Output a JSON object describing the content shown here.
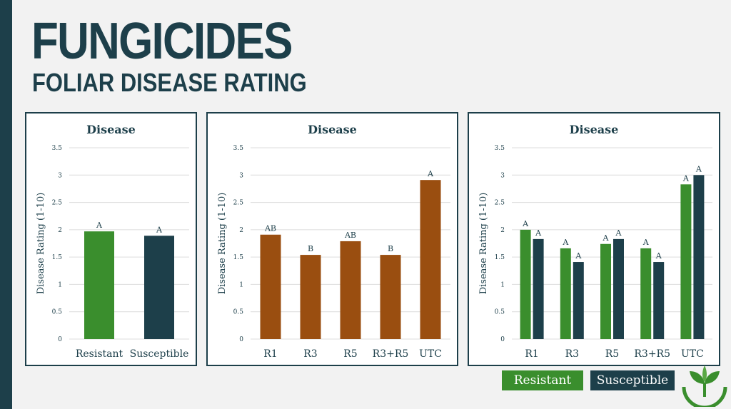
{
  "header": {
    "title": "FUNGICIDES",
    "subtitle": "FOLIAR DISEASE RATING"
  },
  "legend": {
    "items": [
      {
        "label": "Resistant",
        "color": "#3a8e2d"
      },
      {
        "label": "Susceptible",
        "color": "#1d3f4a"
      }
    ]
  },
  "colors": {
    "resistant": "#3a8e2d",
    "susceptible": "#1d3f4a",
    "timing": "#9a4e10",
    "frame": "#1d3f4a"
  },
  "chart_data": [
    {
      "type": "bar",
      "title": "Disease",
      "ylabel": "Disease Rating (1-10)",
      "ylim": [
        0,
        3.5
      ],
      "yticks": [
        "0",
        "0.5",
        "1",
        "1.5",
        "2",
        "2.5",
        "3",
        "3.5"
      ],
      "categories": [
        "Resistant",
        "Susceptible"
      ],
      "series": [
        {
          "values": [
            1.97,
            1.89
          ],
          "letters": [
            "A",
            "A"
          ],
          "colors": [
            "#3a8e2d",
            "#1d3f4a"
          ]
        }
      ],
      "grid": true
    },
    {
      "type": "bar",
      "title": "Disease",
      "ylabel": "Disease Rating (1-10)",
      "ylim": [
        0,
        3.5
      ],
      "yticks": [
        "0",
        "0.5",
        "1",
        "1.5",
        "2",
        "2.5",
        "3",
        "3.5"
      ],
      "categories": [
        "R1",
        "R3",
        "R5",
        "R3+R5",
        "UTC"
      ],
      "series": [
        {
          "values": [
            1.91,
            1.54,
            1.79,
            1.54,
            2.91
          ],
          "letters": [
            "AB",
            "B",
            "AB",
            "B",
            "A"
          ],
          "colors": [
            "#9a4e10",
            "#9a4e10",
            "#9a4e10",
            "#9a4e10",
            "#9a4e10"
          ]
        }
      ],
      "grid": true
    },
    {
      "type": "bar",
      "title": "Disease",
      "ylabel": "Disease Rating (1-10)",
      "ylim": [
        0,
        3.5
      ],
      "yticks": [
        "0",
        "0.5",
        "1",
        "1.5",
        "2",
        "2.5",
        "3",
        "3.5"
      ],
      "categories": [
        "R1",
        "R3",
        "R5",
        "R3+R5",
        "UTC"
      ],
      "series": [
        {
          "values": [
            2.0,
            1.66,
            1.74,
            1.66,
            2.83
          ],
          "letters": [
            "A",
            "A",
            "A",
            "A",
            "A"
          ],
          "colors": [
            "#3a8e2d",
            "#3a8e2d",
            "#3a8e2d",
            "#3a8e2d",
            "#3a8e2d"
          ]
        },
        {
          "values": [
            1.83,
            1.41,
            1.83,
            1.41,
            3.0
          ],
          "letters": [
            "A",
            "A",
            "A",
            "A",
            "A"
          ],
          "colors": [
            "#1d3f4a",
            "#1d3f4a",
            "#1d3f4a",
            "#1d3f4a",
            "#1d3f4a"
          ]
        }
      ],
      "grid": true
    }
  ]
}
